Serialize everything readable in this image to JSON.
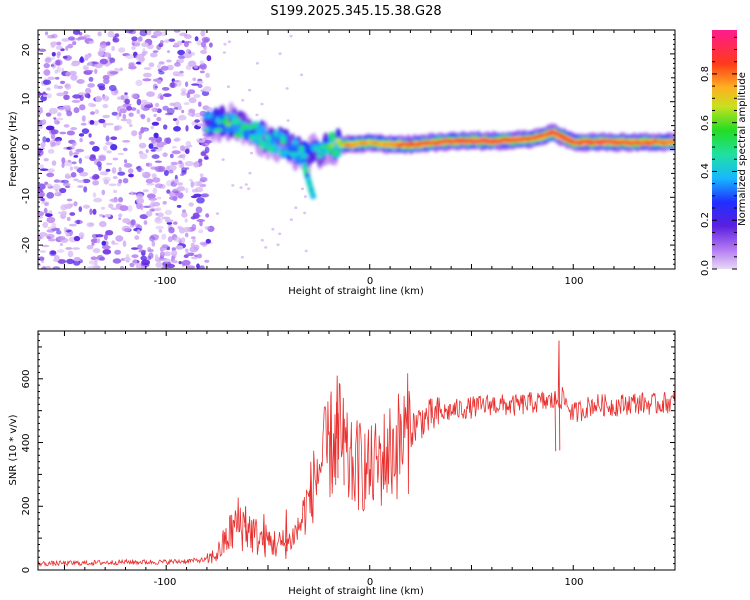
{
  "title": "S199.2025.345.15.38.G28",
  "chart_data": [
    {
      "type": "heatmap",
      "xlabel": "Height of straight line (km)",
      "ylabel": "Frequency (Hz)",
      "xlim": [
        -163,
        150
      ],
      "ylim": [
        -25,
        25
      ],
      "xticks": [
        "-100",
        "0",
        "100"
      ],
      "yticks": [
        "-20",
        "-10",
        "0",
        "10",
        "20"
      ],
      "noise_region_x": [
        -163,
        -78
      ],
      "ridge": [
        {
          "x": -80,
          "f": 5.5,
          "amp": 0.35
        },
        {
          "x": -70,
          "f": 6.0,
          "amp": 0.5
        },
        {
          "x": -60,
          "f": 4.0,
          "amp": 0.45
        },
        {
          "x": -50,
          "f": 2.0,
          "amp": 0.5
        },
        {
          "x": -40,
          "f": 0.5,
          "amp": 0.45
        },
        {
          "x": -30,
          "f": -1.5,
          "amp": 0.4
        },
        {
          "x": -20,
          "f": 1.0,
          "amp": 0.55
        },
        {
          "x": -10,
          "f": 1.0,
          "amp": 0.85
        },
        {
          "x": 0,
          "f": 1.5,
          "amp": 0.8
        },
        {
          "x": 10,
          "f": 1.0,
          "amp": 0.85
        },
        {
          "x": 20,
          "f": 1.0,
          "amp": 0.9
        },
        {
          "x": 40,
          "f": 1.8,
          "amp": 0.95
        },
        {
          "x": 60,
          "f": 1.8,
          "amp": 0.97
        },
        {
          "x": 80,
          "f": 2.2,
          "amp": 0.9
        },
        {
          "x": 90,
          "f": 3.5,
          "amp": 0.95
        },
        {
          "x": 100,
          "f": 1.5,
          "amp": 0.92
        },
        {
          "x": 120,
          "f": 1.5,
          "amp": 0.95
        },
        {
          "x": 150,
          "f": 1.5,
          "amp": 0.85
        }
      ],
      "colorbar": {
        "label": "Normalized spectral amplitude",
        "range": [
          0,
          0.98
        ],
        "ticks": [
          "0.0",
          "0.2",
          "0.4",
          "0.6",
          "0.8"
        ]
      }
    },
    {
      "type": "line",
      "xlabel": "Height of straight line (km)",
      "ylabel": "SNR (10 * v/v)",
      "xlim": [
        -163,
        150
      ],
      "ylim": [
        0,
        750
      ],
      "xticks": [
        "-100",
        "0",
        "100"
      ],
      "yticks": [
        "0",
        "200",
        "400",
        "600"
      ],
      "color": "#e8312f",
      "series": [
        {
          "name": "SNR",
          "x": [
            -163,
            -140,
            -120,
            -100,
            -90,
            -80,
            -75,
            -70,
            -65,
            -60,
            -55,
            -50,
            -45,
            -40,
            -35,
            -30,
            -25,
            -20,
            -15,
            -10,
            -5,
            0,
            5,
            10,
            15,
            20,
            25,
            30,
            40,
            50,
            60,
            70,
            80,
            90,
            95,
            100,
            110,
            120,
            130,
            140,
            150
          ],
          "y": [
            20,
            22,
            25,
            25,
            28,
            32,
            50,
            100,
            150,
            130,
            100,
            90,
            80,
            85,
            130,
            220,
            320,
            380,
            420,
            320,
            330,
            310,
            340,
            370,
            400,
            440,
            470,
            480,
            500,
            510,
            520,
            515,
            525,
            530,
            540,
            490,
            520,
            515,
            525,
            520,
            530
          ]
        }
      ],
      "spikes": [
        {
          "x": 93,
          "y": 720
        },
        {
          "x": 91,
          "y": 560
        },
        {
          "x": -16,
          "y": 610
        },
        {
          "x": -19,
          "y": 560
        },
        {
          "x": -13,
          "y": 540
        },
        {
          "x": -61,
          "y": 200
        },
        {
          "x": -52,
          "y": 175
        },
        {
          "x": -41,
          "y": 190
        },
        {
          "x": -29,
          "y": 280
        },
        {
          "x": 150,
          "y": 560
        }
      ]
    }
  ]
}
